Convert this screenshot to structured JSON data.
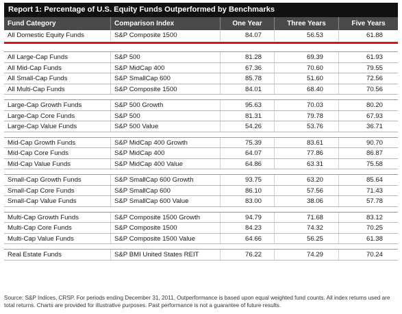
{
  "title": "Report 1: Percentage of U.S. Equity Funds Outperformed by Benchmarks",
  "columns": [
    "Fund Category",
    "Comparison Index",
    "One Year",
    "Three Years",
    "Five Years"
  ],
  "top_row": {
    "category": "All Domestic Equity Funds",
    "index": "S&P Composite 1500",
    "one_year": "84.07",
    "three_years": "56.53",
    "five_years": "61.88"
  },
  "groups": [
    {
      "rows": [
        {
          "category": "All Large-Cap Funds",
          "index": "S&P 500",
          "one_year": "81.28",
          "three_years": "69.39",
          "five_years": "61.93"
        },
        {
          "category": "All Mid-Cap Funds",
          "index": "S&P MidCap 400",
          "one_year": "67.36",
          "three_years": "70.60",
          "five_years": "79.55"
        },
        {
          "category": "All Small-Cap Funds",
          "index": "S&P SmallCap 600",
          "one_year": "85.78",
          "three_years": "51.60",
          "five_years": "72.56"
        },
        {
          "category": "All Multi-Cap Funds",
          "index": "S&P Composite 1500",
          "one_year": "84.01",
          "three_years": "68.40",
          "five_years": "70.56"
        }
      ]
    },
    {
      "rows": [
        {
          "category": "Large-Cap Growth Funds",
          "index": "S&P 500 Growth",
          "one_year": "95.63",
          "three_years": "70.03",
          "five_years": "80.20"
        },
        {
          "category": "Large-Cap Core Funds",
          "index": "S&P 500",
          "one_year": "81.31",
          "three_years": "79.78",
          "five_years": "67.93"
        },
        {
          "category": "Large-Cap Value Funds",
          "index": "S&P 500 Value",
          "one_year": "54.26",
          "three_years": "53.76",
          "five_years": "36.71"
        }
      ]
    },
    {
      "rows": [
        {
          "category": "Mid-Cap Growth Funds",
          "index": "S&P MidCap 400 Growth",
          "one_year": "75.39",
          "three_years": "83.61",
          "five_years": "90.70"
        },
        {
          "category": "Mid-Cap Core Funds",
          "index": "S&P MidCap 400",
          "one_year": "64.07",
          "three_years": "77.86",
          "five_years": "86.87"
        },
        {
          "category": "Mid-Cap Value Funds",
          "index": "S&P MidCap 400 Value",
          "one_year": "64.86",
          "three_years": "63.31",
          "five_years": "75.58"
        }
      ]
    },
    {
      "rows": [
        {
          "category": "Small-Cap Growth Funds",
          "index": "S&P SmallCap 600 Growth",
          "one_year": "93.75",
          "three_years": "63.20",
          "five_years": "85.64"
        },
        {
          "category": "Small-Cap Core Funds",
          "index": "S&P SmallCap 600",
          "one_year": "86.10",
          "three_years": "57.56",
          "five_years": "71.43"
        },
        {
          "category": "Small-Cap Value Funds",
          "index": "S&P SmallCap 600 Value",
          "one_year": "83.00",
          "three_years": "38.06",
          "five_years": "57.78"
        }
      ]
    },
    {
      "rows": [
        {
          "category": "Multi-Cap Growth Funds",
          "index": "S&P Composite 1500 Growth",
          "one_year": "94.79",
          "three_years": "71.68",
          "five_years": "83.12"
        },
        {
          "category": "Multi-Cap Core Funds",
          "index": "S&P Composite 1500",
          "one_year": "84.23",
          "three_years": "74.32",
          "five_years": "70.25"
        },
        {
          "category": "Multi-Cap Value Funds",
          "index": "S&P Composite 1500 Value",
          "one_year": "64.66",
          "three_years": "56.25",
          "five_years": "61.38"
        }
      ]
    },
    {
      "rows": [
        {
          "category": "Real Estate Funds",
          "index": "S&P BMI United States REIT",
          "one_year": "76.22",
          "three_years": "74.29",
          "five_years": "70.24"
        }
      ]
    }
  ],
  "footnote": "Source: S&P Indices, CRSP.  For periods ending December 31, 2011.  Outperformance is based upon equal weighted fund counts.  All index returns used are total returns.  Charts are provided for illustrative purposes.  Past performance is not a guarantee of future results."
}
